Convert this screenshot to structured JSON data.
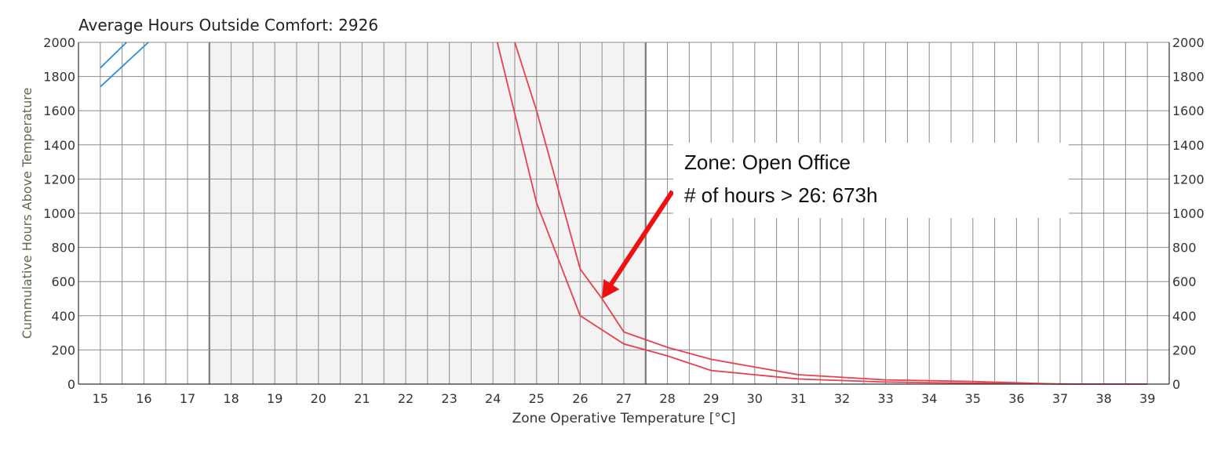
{
  "chart_data": {
    "type": "line",
    "title": "Average Hours Outside Comfort: 2926",
    "xlabel": "Zone Operative Temperature [°C]",
    "ylabel": "Cummulative Hours Above Temperature",
    "x_ticks": [
      15,
      16,
      17,
      18,
      19,
      20,
      21,
      22,
      23,
      24,
      25,
      26,
      27,
      28,
      29,
      30,
      31,
      32,
      33,
      34,
      35,
      36,
      37,
      38,
      39
    ],
    "xlim": [
      14.5,
      39.5
    ],
    "ylim": [
      0,
      2000
    ],
    "y_ticks": [
      0,
      200,
      400,
      600,
      800,
      1000,
      1200,
      1400,
      1600,
      1800,
      2000
    ],
    "grid": true,
    "comfort_band": [
      17.5,
      27.5
    ],
    "series": [
      {
        "color": "#2e8fd6",
        "points": [
          [
            15,
            1850
          ],
          [
            15.6,
            2000
          ]
        ]
      },
      {
        "color": "#2e8fd6",
        "points": [
          [
            15,
            1740
          ],
          [
            16.1,
            2000
          ]
        ]
      },
      {
        "color": "#e8404c",
        "points": [
          [
            24.1,
            2000
          ],
          [
            25,
            1060
          ],
          [
            26,
            400
          ],
          [
            27,
            235
          ],
          [
            28,
            165
          ],
          [
            29,
            80
          ],
          [
            31,
            30
          ],
          [
            33,
            12
          ],
          [
            35,
            5
          ],
          [
            37,
            1
          ],
          [
            38,
            0
          ],
          [
            39,
            0
          ]
        ]
      },
      {
        "color": "#e8404c",
        "points": [
          [
            24.5,
            2000
          ],
          [
            25,
            1600
          ],
          [
            26,
            673
          ],
          [
            26.5,
            500
          ],
          [
            27,
            305
          ],
          [
            28,
            215
          ],
          [
            29,
            145
          ],
          [
            30,
            100
          ],
          [
            31,
            55
          ],
          [
            33,
            25
          ],
          [
            35,
            15
          ],
          [
            36,
            8
          ],
          [
            37,
            0
          ],
          [
            38,
            0
          ],
          [
            39,
            0
          ]
        ]
      }
    ],
    "annotation": {
      "line1": "Zone: Open Office",
      "line2": "# of hours > 26: 673h",
      "arrow_color": "#ee1111",
      "arrow_target": [
        26.5,
        500
      ]
    }
  }
}
